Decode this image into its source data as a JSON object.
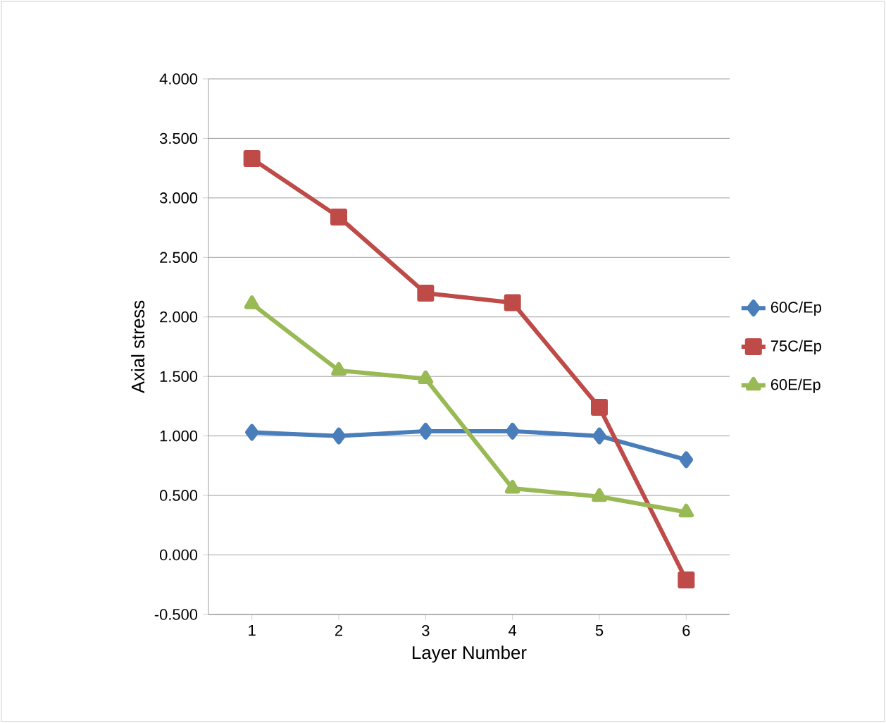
{
  "chart_data": {
    "type": "line",
    "xlabel": "Layer Number",
    "ylabel": "Axial stress",
    "categories": [
      "1",
      "2",
      "3",
      "4",
      "5",
      "6"
    ],
    "series": [
      {
        "name": "60C/Ep",
        "color": "#4a7ebb",
        "marker": "diamond",
        "values": [
          1.03,
          1.0,
          1.04,
          1.04,
          1.0,
          0.8
        ]
      },
      {
        "name": "75C/Ep",
        "color": "#be4b48",
        "marker": "square",
        "values": [
          3.33,
          2.84,
          2.2,
          2.12,
          1.24,
          -0.21
        ]
      },
      {
        "name": "60E/Ep",
        "color": "#98b954",
        "marker": "triangle",
        "values": [
          2.11,
          1.55,
          1.48,
          0.56,
          0.49,
          0.36
        ]
      }
    ],
    "ylim": [
      -0.5,
      4
    ],
    "yticks": [
      {
        "value": -0.5,
        "label": "-0.500"
      },
      {
        "value": 0,
        "label": "0.000"
      },
      {
        "value": 0.5,
        "label": "0.500"
      },
      {
        "value": 1,
        "label": "1.000"
      },
      {
        "value": 1.5,
        "label": "1.500"
      },
      {
        "value": 2,
        "label": "2.000"
      },
      {
        "value": 2.5,
        "label": "2.500"
      },
      {
        "value": 3,
        "label": "3.000"
      },
      {
        "value": 3.5,
        "label": "3.500"
      },
      {
        "value": 4,
        "label": "4.000"
      }
    ],
    "grid": "y",
    "legend": "right",
    "line_style": "solid"
  }
}
